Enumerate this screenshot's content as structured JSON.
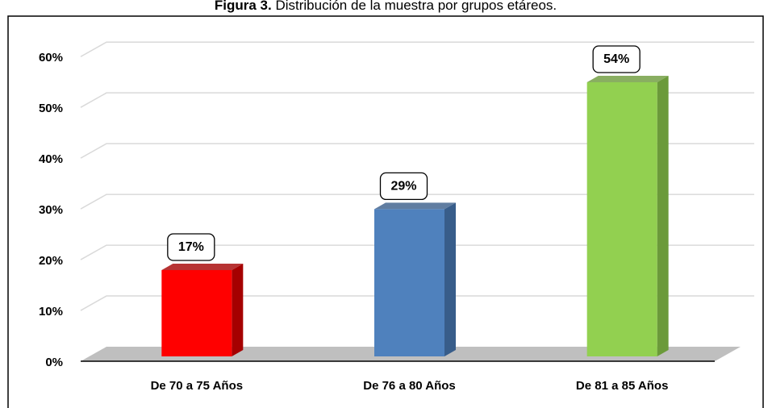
{
  "chart_data": {
    "type": "bar",
    "figure_label": "Figura 3.",
    "title": "Distribución de la muestra por grupos etáreos.",
    "categories": [
      "De 70 a 75 Años",
      "De 76 a 80 Años",
      "De 81 a 85 Años"
    ],
    "values": [
      17,
      29,
      54
    ],
    "value_labels": [
      "17%",
      "29%",
      "54%"
    ],
    "colors": [
      "#ff0000",
      "#4f81bd",
      "#92d050"
    ],
    "side_colors": [
      "#a50000",
      "#385d8a",
      "#6b9a3a"
    ],
    "ylim": [
      0,
      60
    ],
    "yticks": [
      {
        "value": 0,
        "label": "0%"
      },
      {
        "value": 10,
        "label": "10%"
      },
      {
        "value": 20,
        "label": "20%"
      },
      {
        "value": 30,
        "label": "30%"
      },
      {
        "value": 40,
        "label": "40%"
      },
      {
        "value": 50,
        "label": "50%"
      },
      {
        "value": 60,
        "label": "60%"
      }
    ],
    "grid": true
  }
}
